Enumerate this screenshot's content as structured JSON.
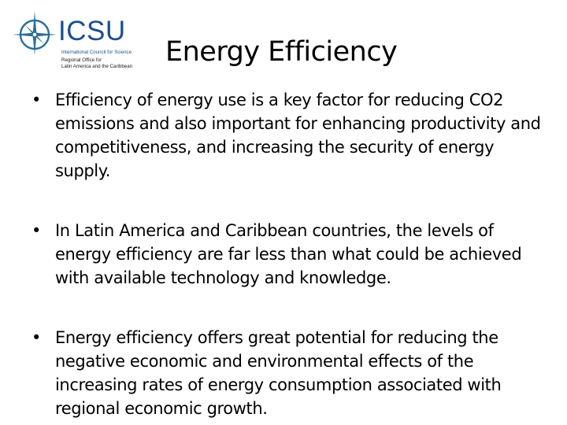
{
  "logo": {
    "name": "ICSU",
    "subtitle_line1": "International Council for Science",
    "subtitle_line2": "Regional Office for",
    "subtitle_line3": "Latin America and the Caribbean",
    "color": "#1b4f8f",
    "icon": "compass-star-icon"
  },
  "slide": {
    "title": "Energy Efficiency",
    "bullet_glyph": "•",
    "bullets": [
      {
        "text": "Efficiency of energy use is a key factor for reducing CO2 emissions and also important for enhancing productivity and competitiveness, and increasing the security of energy supply."
      },
      {
        "text": "In Latin America and Caribbean countries, the levels of energy efficiency are far less than what could be achieved with available technology and knowledge."
      },
      {
        "text": "Energy efficiency offers great potential for reducing the negative economic and environmental effects of the increasing rates of energy consumption associated with regional economic growth."
      }
    ]
  }
}
